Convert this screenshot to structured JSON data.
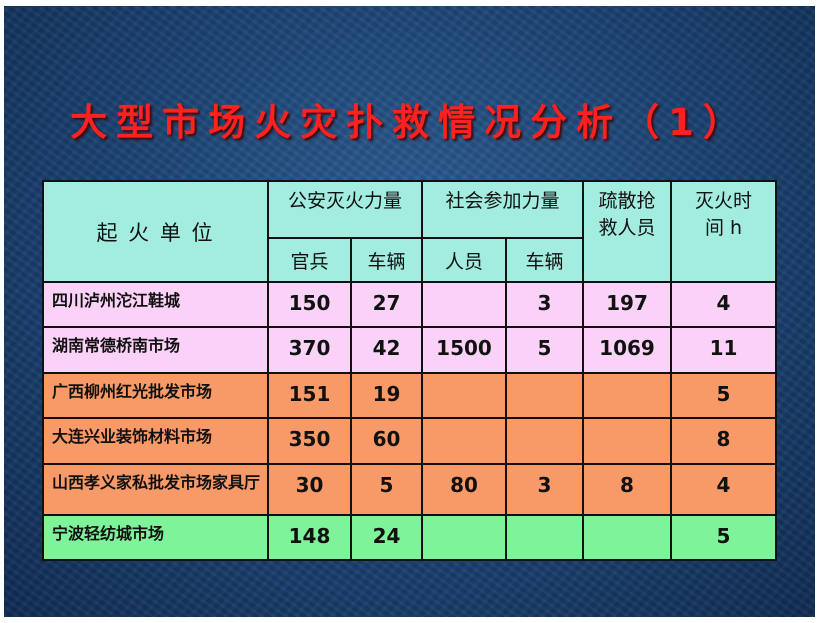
{
  "title": "大型市场火灾扑救情况分析（1）",
  "header": {
    "unit": "起 火 单 位",
    "police": "公安灭火力量",
    "social": "社会参加力量",
    "evac": "疏散抢救人员",
    "time": "灭火时间 h",
    "police_soldiers": "官兵",
    "police_vehicles": "车辆",
    "social_people": "人员",
    "social_vehicles": "车辆"
  },
  "rows": [
    {
      "unit": "四川泸州沱江鞋城",
      "soldiers": "150",
      "vehicles": "27",
      "people": "",
      "svehicles": "3",
      "evac": "197",
      "time": "4",
      "color": "#fad2f8"
    },
    {
      "unit": "湖南常德桥南市场",
      "soldiers": "370",
      "vehicles": "42",
      "people": "1500",
      "svehicles": "5",
      "evac": "1069",
      "time": "11",
      "color": "#fad2f8"
    },
    {
      "unit": "广西柳州红光批发市场",
      "soldiers": "151",
      "vehicles": "19",
      "people": "",
      "svehicles": "",
      "evac": "",
      "time": "5",
      "color": "#f89a68"
    },
    {
      "unit": "大连兴业装饰材料市场",
      "soldiers": "350",
      "vehicles": "60",
      "people": "",
      "svehicles": "",
      "evac": "",
      "time": "8",
      "color": "#f89a68"
    },
    {
      "unit": "山西孝义家私批发市场家具厅",
      "soldiers": "30",
      "vehicles": "5",
      "people": "80",
      "svehicles": "3",
      "evac": "8",
      "time": "4",
      "color": "#f89a68"
    },
    {
      "unit": "宁波轻纺城市场",
      "soldiers": "148",
      "vehicles": "24",
      "people": "",
      "svehicles": "",
      "evac": "",
      "time": "5",
      "color": "#7ef39a"
    }
  ]
}
